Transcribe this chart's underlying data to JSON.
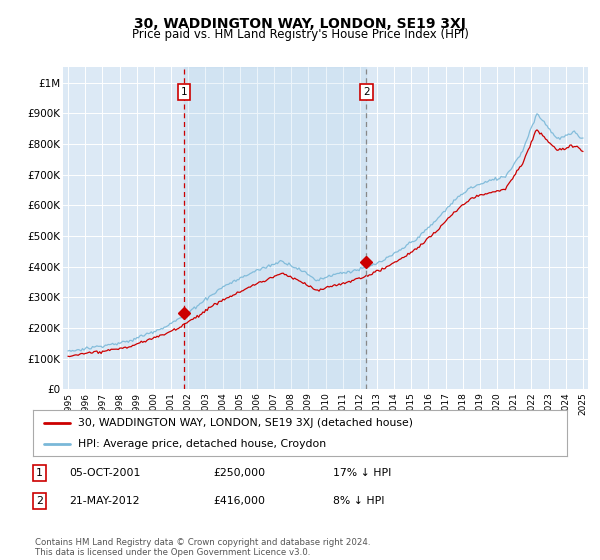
{
  "title": "30, WADDINGTON WAY, LONDON, SE19 3XJ",
  "subtitle": "Price paid vs. HM Land Registry's House Price Index (HPI)",
  "bg_color": "#dce9f5",
  "hpi_color": "#7ab8d8",
  "price_color": "#cc0000",
  "vline1_color": "#cc0000",
  "vline2_color": "#888888",
  "marker1_x": 2001.75,
  "marker2_x": 2012.38,
  "marker1_y": 250000,
  "marker2_y": 416000,
  "ylim_min": 0,
  "ylim_max": 1050000,
  "legend_label_price": "30, WADDINGTON WAY, LONDON, SE19 3XJ (detached house)",
  "legend_label_hpi": "HPI: Average price, detached house, Croydon",
  "annotation1_num": "1",
  "annotation1_date": "05-OCT-2001",
  "annotation1_price": "£250,000",
  "annotation1_hpi": "17% ↓ HPI",
  "annotation2_num": "2",
  "annotation2_date": "21-MAY-2012",
  "annotation2_price": "£416,000",
  "annotation2_hpi": "8% ↓ HPI",
  "footer": "Contains HM Land Registry data © Crown copyright and database right 2024.\nThis data is licensed under the Open Government Licence v3.0.",
  "yticks": [
    0,
    100000,
    200000,
    300000,
    400000,
    500000,
    600000,
    700000,
    800000,
    900000,
    1000000
  ],
  "ytick_labels": [
    "£0",
    "£100K",
    "£200K",
    "£300K",
    "£400K",
    "£500K",
    "£600K",
    "£700K",
    "£800K",
    "£900K",
    "£1M"
  ],
  "xticks": [
    1995,
    1996,
    1997,
    1998,
    1999,
    2000,
    2001,
    2002,
    2003,
    2004,
    2005,
    2006,
    2007,
    2008,
    2009,
    2010,
    2011,
    2012,
    2013,
    2014,
    2015,
    2016,
    2017,
    2018,
    2019,
    2020,
    2021,
    2022,
    2023,
    2024,
    2025
  ]
}
